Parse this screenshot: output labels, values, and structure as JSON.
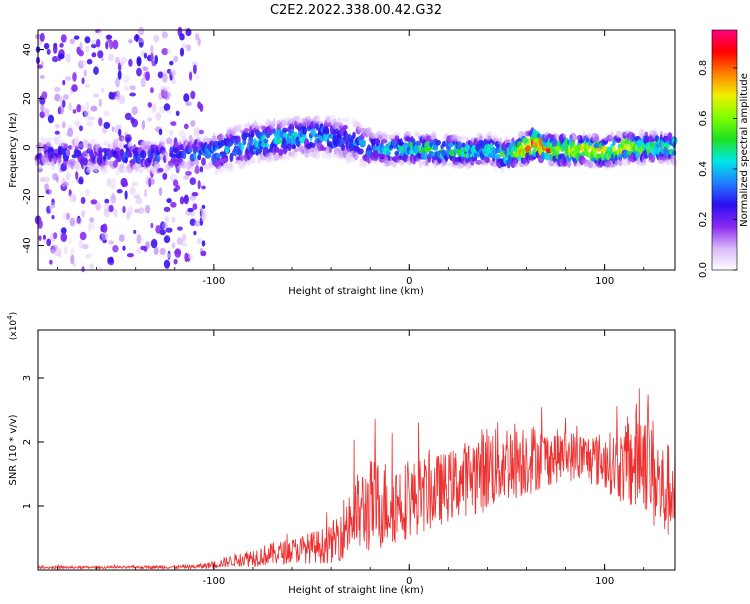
{
  "figure": {
    "title": "C2E2.2022.338.00.42.G32"
  },
  "chart_data": [
    {
      "type": "heatmap",
      "title": "C2E2.2022.338.00.42.G32",
      "xlabel": "Height of straight line (km)",
      "ylabel": "Frequency (Hz)",
      "xlim": [
        -190,
        136
      ],
      "ylim": [
        -50,
        48
      ],
      "x_ticks": [
        "-100",
        "0",
        "100"
      ],
      "x_tick_values": [
        -100,
        0,
        100
      ],
      "y_ticks": [
        "40",
        "20",
        "0",
        "-20",
        "-40"
      ],
      "y_tick_values": [
        40,
        20,
        0,
        -20,
        -40
      ],
      "colorbar": {
        "label": "Normalized spectral amplitude",
        "range": [
          0,
          0.95
        ],
        "ticks": [
          "0.0",
          "0.2",
          "0.4",
          "0.6",
          "0.8"
        ],
        "tick_values": [
          0,
          0.2,
          0.4,
          0.6,
          0.8
        ],
        "colors": [
          "#ffffff",
          "#d8b8f8",
          "#8a28f0",
          "#2a10f0",
          "#2080ff",
          "#00e8e8",
          "#20e020",
          "#80ff00",
          "#f0f000",
          "#ff8000",
          "#ff0000",
          "#ff0080"
        ]
      },
      "ridge": {
        "description_points_x": [
          -190,
          -150,
          -120,
          -100,
          -80,
          -60,
          -45,
          -30,
          -20,
          -10,
          0,
          10,
          20,
          30,
          40,
          50,
          60,
          65,
          70,
          80,
          90,
          100,
          110,
          120,
          136
        ],
        "center_hz": [
          -2,
          -4,
          -3,
          -2,
          2,
          4,
          5,
          3,
          0,
          -1,
          0,
          -1,
          -1,
          -2,
          -1,
          -3,
          0,
          2,
          -1,
          -1,
          -1,
          -2,
          0,
          0,
          0
        ],
        "peak_amplitude": [
          0.25,
          0.3,
          0.35,
          0.4,
          0.45,
          0.45,
          0.4,
          0.35,
          0.4,
          0.45,
          0.5,
          0.55,
          0.55,
          0.5,
          0.5,
          0.55,
          0.85,
          0.95,
          0.85,
          0.75,
          0.7,
          0.75,
          0.7,
          0.6,
          0.55
        ]
      }
    },
    {
      "type": "line",
      "xlabel": "Height of straight line (km)",
      "ylabel": "SNR (10 * v/v)",
      "y_multiplier": "(x10",
      "y_multiplier_exp": "4",
      "y_multiplier_close": ")",
      "xlim": [
        -190,
        136
      ],
      "ylim": [
        0,
        3.75
      ],
      "x_ticks": [
        "-100",
        "0",
        "100"
      ],
      "x_tick_values": [
        -100,
        0,
        100
      ],
      "y_ticks": [
        "1",
        "2",
        "3"
      ],
      "y_tick_values": [
        1,
        2,
        3
      ],
      "color": "#ee3030",
      "series": [
        {
          "x": [
            -190,
            -150,
            -110,
            -100,
            -90,
            -80,
            -70,
            -60,
            -50,
            -40,
            -35,
            -30,
            -20,
            -10,
            0,
            10,
            20,
            30,
            40,
            50,
            60,
            70,
            80,
            90,
            100,
            110,
            115,
            120,
            125,
            130,
            136
          ],
          "values": [
            0.04,
            0.04,
            0.05,
            0.08,
            0.15,
            0.2,
            0.25,
            0.3,
            0.35,
            0.4,
            0.6,
            0.8,
            1.0,
            1.05,
            1.1,
            1.2,
            1.3,
            1.45,
            1.6,
            1.7,
            1.75,
            1.75,
            1.8,
            1.75,
            1.7,
            1.6,
            1.7,
            1.85,
            1.5,
            1.2,
            1.3
          ],
          "spread": [
            0.02,
            0.02,
            0.03,
            0.06,
            0.1,
            0.15,
            0.18,
            0.2,
            0.25,
            0.3,
            0.45,
            0.6,
            0.75,
            0.7,
            0.6,
            0.6,
            0.55,
            0.6,
            0.7,
            0.65,
            0.6,
            0.45,
            0.4,
            0.4,
            0.45,
            0.6,
            0.9,
            0.9,
            0.9,
            0.8,
            0.7
          ]
        }
      ]
    }
  ]
}
